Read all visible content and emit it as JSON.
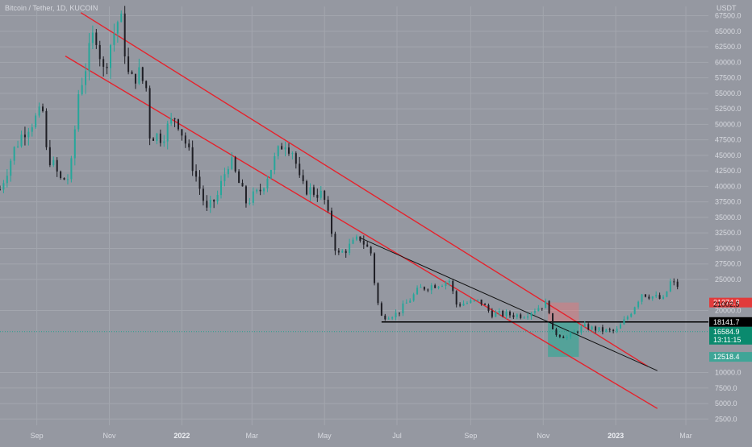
{
  "header": {
    "symbol": "Bitcoin / Tether, 1D, KUCOIN",
    "currency": "USDT"
  },
  "colors": {
    "background": "#9598a1",
    "candle_up": "#26a69a",
    "candle_down": "#1e1e24",
    "channel": "#e6222c",
    "trendline": "#111111",
    "support": "#000000",
    "box_fill": "#3fa597",
    "box_stop": "#ff6b6b",
    "tag_red": "#e23b3b",
    "tag_black": "#000000",
    "tag_green": "#0a8a6e",
    "tag_teal": "#3fa597"
  },
  "chart_data": {
    "type": "candlestick",
    "x_range": [
      "2021-08-01",
      "2023-03-20"
    ],
    "ylim": [
      1500,
      69000
    ],
    "x_ticks": [
      {
        "date": "2021-09-01",
        "label": "Sep",
        "bold": false
      },
      {
        "date": "2021-11-01",
        "label": "Nov",
        "bold": false
      },
      {
        "date": "2022-01-01",
        "label": "2022",
        "bold": true
      },
      {
        "date": "2022-03-01",
        "label": "Mar",
        "bold": false
      },
      {
        "date": "2022-05-01",
        "label": "May",
        "bold": false
      },
      {
        "date": "2022-07-01",
        "label": "Jul",
        "bold": false
      },
      {
        "date": "2022-09-01",
        "label": "Sep",
        "bold": false
      },
      {
        "date": "2022-11-01",
        "label": "Nov",
        "bold": false
      },
      {
        "date": "2023-01-01",
        "label": "2023",
        "bold": true
      },
      {
        "date": "2023-03-01",
        "label": "Mar",
        "bold": false
      }
    ],
    "y_ticks": [
      {
        "value": 2500,
        "label": "2500.0"
      },
      {
        "value": 5000,
        "label": "5000.0"
      },
      {
        "value": 7500,
        "label": "7500.0"
      },
      {
        "value": 10000,
        "label": "10000.0"
      },
      {
        "value": 20000,
        "label": "20000.0"
      },
      {
        "value": 25000,
        "label": "25000.0"
      },
      {
        "value": 27500,
        "label": "27500.0"
      },
      {
        "value": 30000,
        "label": "30000.0"
      },
      {
        "value": 32500,
        "label": "32500.0"
      },
      {
        "value": 35000,
        "label": "35000.0"
      },
      {
        "value": 37500,
        "label": "37500.0"
      },
      {
        "value": 40000,
        "label": "40000.0"
      },
      {
        "value": 42500,
        "label": "42500.0"
      },
      {
        "value": 45000,
        "label": "45000.0"
      },
      {
        "value": 47500,
        "label": "47500.0"
      },
      {
        "value": 50000,
        "label": "50000.0"
      },
      {
        "value": 52500,
        "label": "52500.0"
      },
      {
        "value": 55000,
        "label": "55000.0"
      },
      {
        "value": 57500,
        "label": "57500.0"
      },
      {
        "value": 60000,
        "label": "60000.0"
      },
      {
        "value": 62500,
        "label": "62500.0"
      },
      {
        "value": 65000,
        "label": "65000.0"
      },
      {
        "value": 67500,
        "label": "67500.0"
      }
    ],
    "price_path": [
      [
        "2021-08-01",
        39500
      ],
      [
        "2021-08-14",
        46500
      ],
      [
        "2021-08-23",
        49500
      ],
      [
        "2021-09-06",
        52000
      ],
      [
        "2021-09-08",
        46000
      ],
      [
        "2021-09-21",
        41000
      ],
      [
        "2021-09-29",
        41500
      ],
      [
        "2021-10-06",
        55000
      ],
      [
        "2021-10-15",
        61500
      ],
      [
        "2021-10-20",
        65500
      ],
      [
        "2021-10-27",
        58500
      ],
      [
        "2021-11-02",
        63000
      ],
      [
        "2021-11-10",
        67800
      ],
      [
        "2021-11-18",
        56500
      ],
      [
        "2021-11-25",
        58500
      ],
      [
        "2021-12-03",
        55500
      ],
      [
        "2021-12-04",
        48500
      ],
      [
        "2021-12-15",
        48000
      ],
      [
        "2021-12-27",
        51500
      ],
      [
        "2022-01-05",
        46500
      ],
      [
        "2022-01-22",
        36000
      ],
      [
        "2022-01-31",
        38500
      ],
      [
        "2022-02-10",
        44500
      ],
      [
        "2022-02-24",
        37500
      ],
      [
        "2022-03-07",
        39000
      ],
      [
        "2022-03-28",
        47500
      ],
      [
        "2022-04-05",
        45500
      ],
      [
        "2022-04-11",
        40000
      ],
      [
        "2022-04-30",
        38500
      ],
      [
        "2022-05-09",
        31000
      ],
      [
        "2022-05-12",
        28800
      ],
      [
        "2022-05-31",
        31700
      ],
      [
        "2022-06-10",
        29000
      ],
      [
        "2022-06-13",
        22500
      ],
      [
        "2022-06-18",
        19000
      ],
      [
        "2022-07-01",
        19500
      ],
      [
        "2022-07-20",
        23500
      ],
      [
        "2022-08-14",
        24800
      ],
      [
        "2022-08-20",
        21000
      ],
      [
        "2022-09-09",
        21500
      ],
      [
        "2022-09-18",
        19500
      ],
      [
        "2022-10-15",
        19200
      ],
      [
        "2022-11-05",
        21300
      ],
      [
        "2022-11-09",
        16500
      ],
      [
        "2022-11-21",
        15700
      ],
      [
        "2022-12-05",
        17400
      ],
      [
        "2022-12-20",
        16800
      ],
      [
        "2023-01-01",
        16600
      ],
      [
        "2023-01-13",
        19500
      ],
      [
        "2023-01-23",
        22800
      ],
      [
        "2023-02-10",
        21700
      ],
      [
        "2023-02-16",
        24500
      ],
      [
        "2023-02-22",
        24000
      ]
    ],
    "channel_upper": {
      "start": [
        "2021-10-08",
        68000
      ],
      "end": [
        "2023-01-28",
        11000
      ]
    },
    "channel_lower": {
      "start": [
        "2021-09-25",
        61000
      ],
      "end": [
        "2023-02-05",
        4200
      ]
    },
    "trendline": {
      "start": [
        "2022-05-31",
        31700
      ],
      "end": [
        "2023-02-05",
        10300
      ]
    },
    "support_level": {
      "value": 18141.7,
      "start": "2022-06-18"
    },
    "position_box": {
      "start": "2022-11-05",
      "end": "2022-12-01",
      "entry": 18141.7,
      "stop": 21274.9,
      "target": 12518.4
    },
    "price_tags": [
      {
        "name": "stop-tag",
        "label": "21274.9",
        "value": 21274.9,
        "color": "tag_red"
      },
      {
        "name": "prior-tag",
        "label": "21002.5",
        "value": 21002.5,
        "color": "none"
      },
      {
        "name": "support-tag",
        "label": "18141.7",
        "value": 18141.7,
        "color": "tag_black"
      },
      {
        "name": "last-price-tag",
        "label": "16584.9",
        "sublabel": "13:11:15",
        "value": 16584.9,
        "color": "tag_green"
      },
      {
        "name": "target-tag",
        "label": "12518.4",
        "value": 12518.4,
        "color": "tag_teal"
      }
    ]
  }
}
